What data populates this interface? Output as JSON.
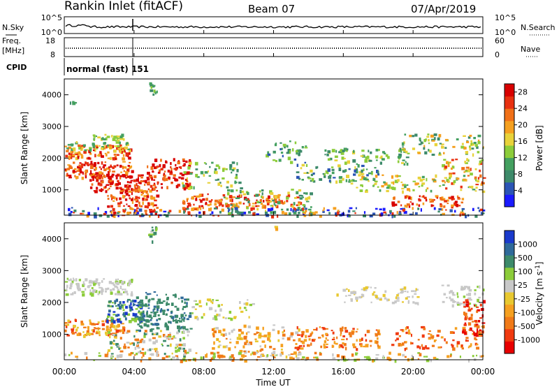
{
  "header": {
    "station": "Rankin Inlet (fitACF)",
    "beam": "Beam 07",
    "date": "07/Apr/2019"
  },
  "nsky_panel": {
    "left_label_line1": "N.Sky",
    "left_ticks": [
      "10^5",
      "10^0"
    ],
    "right_ticks": [
      "10^5",
      "10^0"
    ],
    "right_label": "N.Search"
  },
  "freq_panel": {
    "left_label_line1": "Freq.",
    "left_label_line2": "[MHz]",
    "left_ticks": [
      "18",
      "8"
    ],
    "right_ticks": [
      "60",
      "0"
    ],
    "right_label": "Nave"
  },
  "cpid_panel": {
    "left_label": "CPID",
    "mode_text": "normal (fast) 151"
  },
  "colors": {
    "power_scale": [
      "#1a1aff",
      "#2b55b5",
      "#3d8a6a",
      "#44a060",
      "#8ccc3a",
      "#e8d23a",
      "#f5a020",
      "#f07018",
      "#e83010",
      "#d80000"
    ],
    "velocity_scale": [
      "#e80000",
      "#f03a10",
      "#f07a18",
      "#f5a020",
      "#e8c830",
      "#c8c8c8",
      "#8ccc3a",
      "#3d8a6a",
      "#2f6a9a",
      "#1a3acc"
    ]
  },
  "chart_data": [
    {
      "type": "heatmap",
      "title": "",
      "xlabel": "",
      "ylabel": "Slant Range [km]",
      "x_ticks": [
        "00:00",
        "04:00",
        "08:00",
        "12:00",
        "16:00",
        "20:00",
        "00:00"
      ],
      "y_ticks": [
        "1000",
        "2000",
        "3000",
        "4000"
      ],
      "ylim": [
        200,
        4500
      ],
      "colorbar_label": "Power [dB]",
      "colorbar_ticks": [
        "4",
        "8",
        "12",
        "16",
        "20",
        "24",
        "28"
      ],
      "colorbar_range": [
        0,
        30
      ]
    },
    {
      "type": "heatmap",
      "title": "",
      "xlabel": "Time UT",
      "ylabel": "Slant Range [km]",
      "x_ticks": [
        "00:00",
        "04:00",
        "08:00",
        "12:00",
        "16:00",
        "20:00",
        "00:00"
      ],
      "y_ticks": [
        "1000",
        "2000",
        "3000",
        "4000"
      ],
      "ylim": [
        200,
        4500
      ],
      "colorbar_label": "Velocity [m s^-1]",
      "colorbar_ticks": [
        "1000",
        "500",
        "100",
        "25",
        "-25",
        "-100",
        "-500",
        "-1000"
      ]
    }
  ]
}
